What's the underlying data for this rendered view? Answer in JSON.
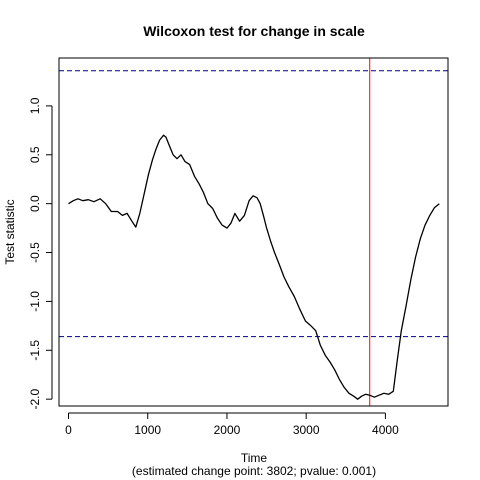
{
  "chart_data": {
    "type": "line",
    "title": "Wilcoxon test for change in scale",
    "xlabel": "Time",
    "xlabel_sub": "(estimated change point: 3802; pvalue: 0.001)",
    "ylabel": "Test statistic",
    "xlim": [
      -120,
      4790
    ],
    "ylim": [
      -2.07,
      1.49
    ],
    "xticks": [
      0,
      1000,
      2000,
      3000,
      4000
    ],
    "xtick_labels": [
      "0",
      "1000",
      "2000",
      "3000",
      "4000"
    ],
    "yticks": [
      -2.0,
      -1.5,
      -1.0,
      -0.5,
      0.0,
      0.5,
      1.0
    ],
    "ytick_labels": [
      "-2.0",
      "-1.5",
      "-1.0",
      "-0.5",
      "0.0",
      "0.5",
      "1.0"
    ],
    "grid": false,
    "threshold_upper": 1.36,
    "threshold_lower": -1.36,
    "change_point": 3802,
    "colors": {
      "series": "#000000",
      "threshold": "#000080",
      "change_point": "#ff0000"
    },
    "series": [
      {
        "x": [
          0,
          60,
          120,
          180,
          250,
          320,
          400,
          470,
          540,
          620,
          680,
          740,
          800,
          850,
          900,
          960,
          1010,
          1060,
          1100,
          1150,
          1200,
          1230,
          1270,
          1320,
          1370,
          1420,
          1470,
          1530,
          1590,
          1650,
          1700,
          1760,
          1820,
          1880,
          1940,
          2000,
          2050,
          2100,
          2160,
          2220,
          2280,
          2330,
          2380,
          2420,
          2460,
          2500,
          2550,
          2600,
          2660,
          2720,
          2780,
          2850,
          2920,
          2990,
          3060,
          3120,
          3180,
          3240,
          3300,
          3360,
          3420,
          3480,
          3540,
          3600,
          3650,
          3700,
          3750,
          3802,
          3860,
          3920,
          3980,
          4040,
          4100,
          4150,
          4200,
          4260,
          4320,
          4380,
          4440,
          4500,
          4560,
          4620,
          4680
        ],
        "y": [
          0.0,
          0.03,
          0.05,
          0.03,
          0.04,
          0.02,
          0.05,
          0.0,
          -0.08,
          -0.08,
          -0.12,
          -0.1,
          -0.18,
          -0.24,
          -0.1,
          0.12,
          0.3,
          0.45,
          0.55,
          0.65,
          0.7,
          0.68,
          0.6,
          0.5,
          0.46,
          0.5,
          0.43,
          0.4,
          0.28,
          0.2,
          0.12,
          0.0,
          -0.05,
          -0.15,
          -0.22,
          -0.25,
          -0.2,
          -0.1,
          -0.18,
          -0.12,
          0.03,
          0.08,
          0.06,
          0.0,
          -0.12,
          -0.25,
          -0.38,
          -0.5,
          -0.62,
          -0.75,
          -0.85,
          -0.95,
          -1.08,
          -1.2,
          -1.25,
          -1.3,
          -1.45,
          -1.55,
          -1.62,
          -1.7,
          -1.8,
          -1.88,
          -1.94,
          -1.97,
          -2.0,
          -1.97,
          -1.95,
          -1.96,
          -1.98,
          -1.96,
          -1.94,
          -1.95,
          -1.92,
          -1.6,
          -1.3,
          -1.05,
          -0.78,
          -0.55,
          -0.36,
          -0.22,
          -0.12,
          -0.04,
          0.0
        ]
      }
    ]
  }
}
